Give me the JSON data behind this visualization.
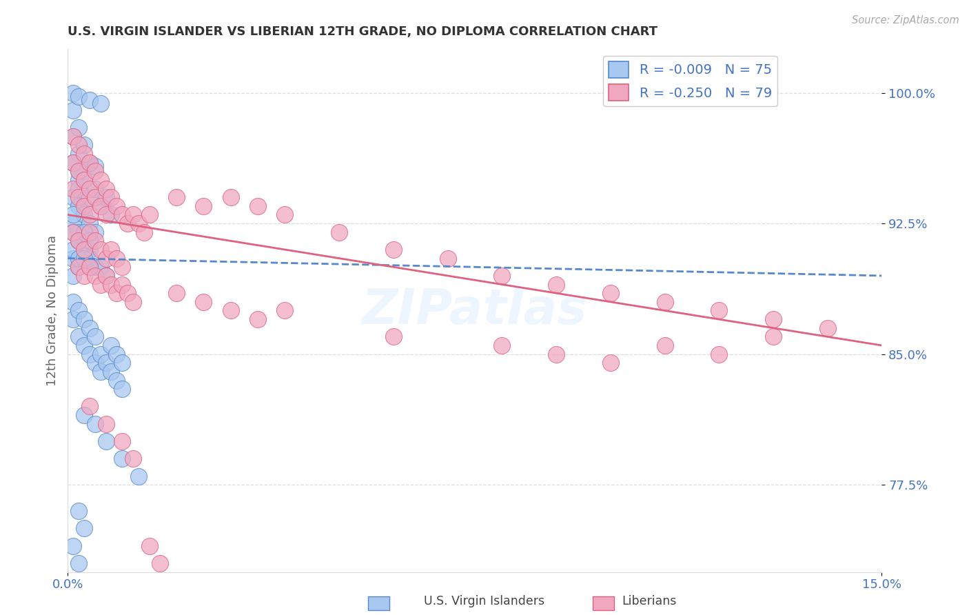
{
  "title": "U.S. VIRGIN ISLANDER VS LIBERIAN 12TH GRADE, NO DIPLOMA CORRELATION CHART",
  "source": "Source: ZipAtlas.com",
  "ylabel": "12th Grade, No Diploma",
  "yticks": [
    "77.5%",
    "85.0%",
    "92.5%",
    "100.0%"
  ],
  "ytick_vals": [
    0.775,
    0.85,
    0.925,
    1.0
  ],
  "xlim": [
    0.0,
    0.15
  ],
  "ylim": [
    0.725,
    1.025
  ],
  "color_blue": "#A8C8F0",
  "color_pink": "#F0A8C0",
  "trend_color_blue": "#5588CC",
  "trend_color_pink": "#E06080",
  "background_color": "#FFFFFF",
  "title_color": "#333333",
  "source_color": "#AAAAAA",
  "label_color": "#4472C4",
  "grid_color": "#DDDDDD",
  "blue_x": [
    0.001,
    0.001,
    0.002,
    0.002,
    0.002,
    0.003,
    0.003,
    0.004,
    0.005,
    0.001,
    0.001,
    0.002,
    0.002,
    0.003,
    0.003,
    0.004,
    0.004,
    0.005,
    0.001,
    0.001,
    0.002,
    0.003,
    0.004,
    0.005,
    0.006,
    0.007,
    0.001,
    0.001,
    0.002,
    0.002,
    0.003,
    0.003,
    0.004,
    0.004,
    0.005,
    0.005,
    0.006,
    0.006,
    0.007,
    0.008,
    0.008,
    0.009,
    0.009,
    0.01,
    0.01,
    0.001,
    0.001,
    0.001,
    0.002,
    0.002,
    0.003,
    0.003,
    0.004,
    0.004,
    0.001,
    0.002,
    0.002,
    0.003,
    0.004,
    0.005,
    0.006,
    0.007,
    0.008,
    0.003,
    0.005,
    0.007,
    0.01,
    0.013,
    0.002,
    0.003,
    0.001,
    0.002,
    0.001,
    0.002,
    0.004,
    0.006
  ],
  "blue_y": [
    0.99,
    0.975,
    0.98,
    0.965,
    0.95,
    0.97,
    0.955,
    0.96,
    0.958,
    0.94,
    0.925,
    0.935,
    0.92,
    0.93,
    0.915,
    0.925,
    0.91,
    0.92,
    0.905,
    0.895,
    0.9,
    0.91,
    0.905,
    0.9,
    0.9,
    0.895,
    0.88,
    0.87,
    0.875,
    0.86,
    0.87,
    0.855,
    0.865,
    0.85,
    0.86,
    0.845,
    0.85,
    0.84,
    0.845,
    0.855,
    0.84,
    0.85,
    0.835,
    0.845,
    0.83,
    0.93,
    0.92,
    0.91,
    0.915,
    0.905,
    0.92,
    0.905,
    0.915,
    0.9,
    0.96,
    0.955,
    0.945,
    0.95,
    0.94,
    0.945,
    0.935,
    0.94,
    0.93,
    0.815,
    0.81,
    0.8,
    0.79,
    0.78,
    0.76,
    0.75,
    0.74,
    0.73,
    1.0,
    0.998,
    0.996,
    0.994
  ],
  "pink_x": [
    0.001,
    0.001,
    0.001,
    0.002,
    0.002,
    0.002,
    0.003,
    0.003,
    0.003,
    0.004,
    0.004,
    0.004,
    0.005,
    0.005,
    0.006,
    0.006,
    0.007,
    0.007,
    0.008,
    0.009,
    0.01,
    0.011,
    0.012,
    0.013,
    0.014,
    0.015,
    0.001,
    0.002,
    0.003,
    0.004,
    0.005,
    0.006,
    0.007,
    0.008,
    0.009,
    0.01,
    0.002,
    0.003,
    0.004,
    0.005,
    0.006,
    0.007,
    0.008,
    0.009,
    0.01,
    0.011,
    0.012,
    0.02,
    0.025,
    0.03,
    0.035,
    0.04,
    0.02,
    0.025,
    0.03,
    0.035,
    0.04,
    0.05,
    0.06,
    0.07,
    0.08,
    0.09,
    0.1,
    0.11,
    0.12,
    0.13,
    0.14,
    0.06,
    0.08,
    0.09,
    0.1,
    0.11,
    0.12,
    0.13,
    0.004,
    0.007,
    0.01,
    0.012,
    0.015,
    0.017
  ],
  "pink_y": [
    0.975,
    0.96,
    0.945,
    0.97,
    0.955,
    0.94,
    0.965,
    0.95,
    0.935,
    0.96,
    0.945,
    0.93,
    0.955,
    0.94,
    0.95,
    0.935,
    0.945,
    0.93,
    0.94,
    0.935,
    0.93,
    0.925,
    0.93,
    0.925,
    0.92,
    0.93,
    0.92,
    0.915,
    0.91,
    0.92,
    0.915,
    0.91,
    0.905,
    0.91,
    0.905,
    0.9,
    0.9,
    0.895,
    0.9,
    0.895,
    0.89,
    0.895,
    0.89,
    0.885,
    0.89,
    0.885,
    0.88,
    0.885,
    0.88,
    0.875,
    0.87,
    0.875,
    0.94,
    0.935,
    0.94,
    0.935,
    0.93,
    0.92,
    0.91,
    0.905,
    0.895,
    0.89,
    0.885,
    0.88,
    0.875,
    0.87,
    0.865,
    0.86,
    0.855,
    0.85,
    0.845,
    0.855,
    0.85,
    0.86,
    0.82,
    0.81,
    0.8,
    0.79,
    0.74,
    0.73
  ],
  "blue_trend_x": [
    0.0,
    0.15
  ],
  "blue_trend_y": [
    0.905,
    0.895
  ],
  "pink_trend_x": [
    0.0,
    0.15
  ],
  "pink_trend_y": [
    0.93,
    0.855
  ]
}
